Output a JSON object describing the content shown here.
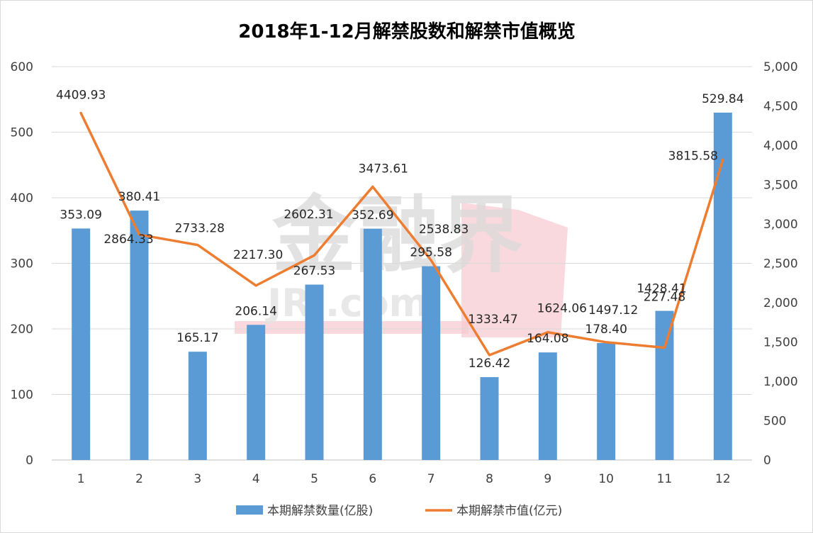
{
  "chart_data": {
    "type": "bar",
    "title": "2018年1-12月解禁股数和解禁市值概览",
    "categories": [
      "1",
      "2",
      "3",
      "4",
      "5",
      "6",
      "7",
      "8",
      "9",
      "10",
      "11",
      "12"
    ],
    "series": [
      {
        "name": "本期解禁数量(亿股)",
        "type": "bar",
        "axis": "left",
        "color": "#5b9bd5",
        "values": [
          353.09,
          380.41,
          165.17,
          206.14,
          267.53,
          352.69,
          295.58,
          126.42,
          164.08,
          178.4,
          227.48,
          529.84
        ]
      },
      {
        "name": "本期解禁市值(亿元)",
        "type": "line",
        "axis": "right",
        "color": "#ed7d31",
        "values": [
          4409.93,
          2864.33,
          2733.28,
          2217.3,
          2602.31,
          3473.61,
          2538.83,
          1333.47,
          1624.06,
          1497.12,
          1428.41,
          3815.58
        ]
      }
    ],
    "bar_labels": [
      "353.09",
      "380.41",
      "165.17",
      "206.14",
      "267.53",
      "352.69",
      "295.58",
      "126.42",
      "164.08",
      "178.40",
      "227.48",
      "529.84"
    ],
    "line_labels": [
      "4409.93",
      "2864.33",
      "2733.28",
      "2217.30",
      "2602.31",
      "3473.61",
      "2538.83",
      "1333.47",
      "1624.06",
      "1497.12",
      "1428.41",
      "3815.58"
    ],
    "y_left": {
      "min": 0,
      "max": 600,
      "ticks": [
        "0",
        "100",
        "200",
        "300",
        "400",
        "500",
        "600"
      ]
    },
    "y_right": {
      "min": 0,
      "max": 5000,
      "ticks": [
        "0",
        "500",
        "1,000",
        "1,500",
        "2,000",
        "2,500",
        "3,000",
        "3,500",
        "4,000",
        "4,500",
        "5,000"
      ]
    },
    "grid": true,
    "legend": "bottom"
  },
  "watermark": {
    "text": "金融界",
    "subtext": "JRJ.com"
  }
}
